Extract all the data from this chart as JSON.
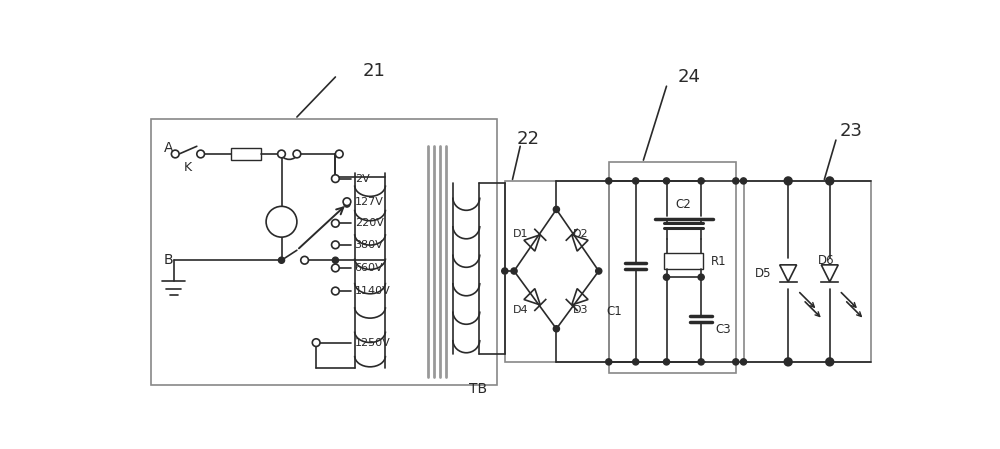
{
  "bg_color": "#ffffff",
  "line_color": "#2a2a2a",
  "fig_width": 10.0,
  "fig_height": 4.49,
  "voltage_taps": [
    "2V",
    "127V",
    "220V",
    "380V",
    "660V",
    "1140V",
    "1250V"
  ]
}
